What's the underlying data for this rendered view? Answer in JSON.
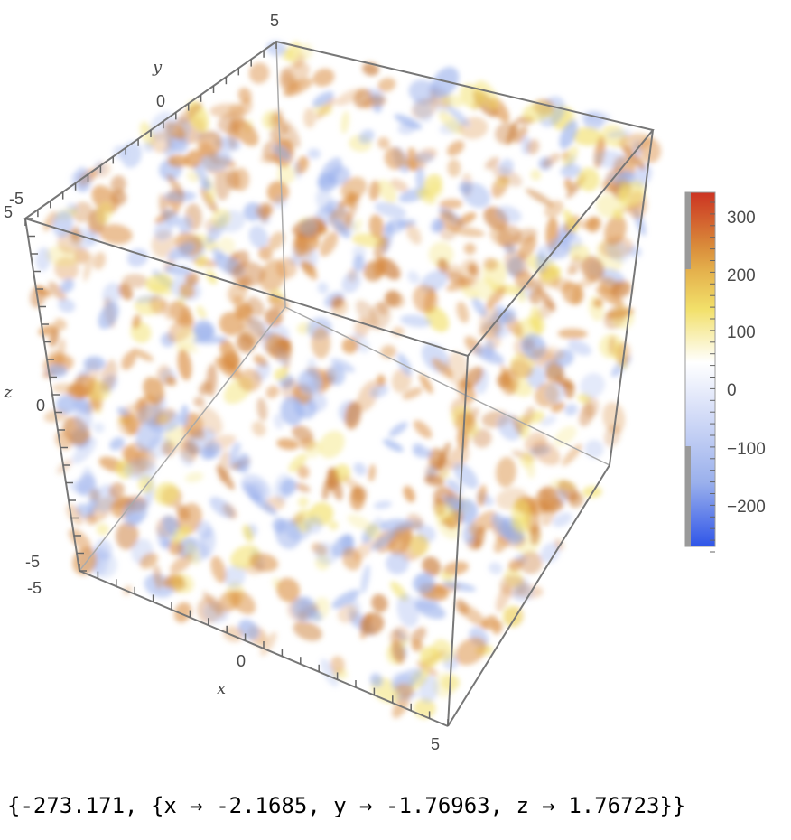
{
  "chart_data": {
    "type": "heatmap",
    "subtype": "3d density plot (cube volume)",
    "axes": {
      "x": {
        "label": "x",
        "ticks": [
          "-5",
          "0",
          "5"
        ],
        "range": [
          -5,
          5
        ]
      },
      "y": {
        "label": "y",
        "ticks": [
          "-5",
          "0",
          "5"
        ],
        "range": [
          -5,
          5
        ]
      },
      "z": {
        "label": "z",
        "ticks": [
          "-5",
          "0",
          "5"
        ],
        "range": [
          -5,
          5
        ]
      }
    },
    "colorbar": {
      "ticks": [
        "300",
        "200",
        "100",
        "0",
        "−100",
        "−200"
      ],
      "tick_values": [
        300,
        200,
        100,
        0,
        -100,
        -200
      ],
      "range": [
        -270,
        340
      ],
      "colors": {
        "max": "#cc3322",
        "high": "#d98a3a",
        "mid_high": "#f2e06a",
        "zero": "#ffffff",
        "low": "#9ab0ec",
        "min": "#2f55e8"
      }
    }
  },
  "output": {
    "text": "{-273.171, {x → -2.1685, y → -1.76963, z → 1.76723}}"
  }
}
